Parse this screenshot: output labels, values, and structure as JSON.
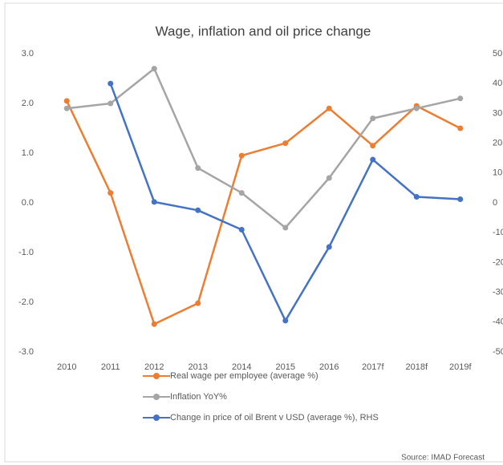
{
  "chart_data": {
    "type": "line",
    "title": "Wage, inflation and oil price change",
    "categories": [
      "2010",
      "2011",
      "2012",
      "2013",
      "2014",
      "2015",
      "2016",
      "2017f",
      "2018f",
      "2019f"
    ],
    "series": [
      {
        "name": "Real wage per employee (average %)",
        "color": "#ed7d31",
        "values": [
          2.05,
          0.2,
          -2.44,
          -2.02,
          0.95,
          1.2,
          1.9,
          1.15,
          1.95,
          1.5
        ]
      },
      {
        "name": "Inflation YoY%",
        "color": "#a5a5a5",
        "values": [
          1.9,
          2.0,
          2.7,
          0.7,
          0.2,
          -0.5,
          0.5,
          1.7,
          1.9,
          2.1
        ]
      },
      {
        "name": "Change in price of oil Brent v USD (average %), RHS",
        "color": "#4472c4",
        "axis": "y2",
        "values": [
          null,
          40,
          0.3,
          -2.5,
          -9,
          -39.5,
          -14.8,
          14.5,
          2,
          1.2
        ]
      }
    ],
    "ylim": [
      -3,
      3
    ],
    "yticks": [
      {
        "value": -3,
        "label": "-3.0"
      },
      {
        "value": -2,
        "label": "-2.0"
      },
      {
        "value": -1,
        "label": "-1.0"
      },
      {
        "value": 0,
        "label": "0.0"
      },
      {
        "value": 1,
        "label": "1.0"
      },
      {
        "value": 2,
        "label": "2.0"
      },
      {
        "value": 3,
        "label": "3.0"
      }
    ],
    "y2lim": [
      -50,
      50
    ],
    "y2ticks": [
      -50,
      -40,
      -30,
      -20,
      -10,
      0,
      10,
      20,
      30,
      40,
      50
    ],
    "source": "Source: IMAD Forecast"
  }
}
